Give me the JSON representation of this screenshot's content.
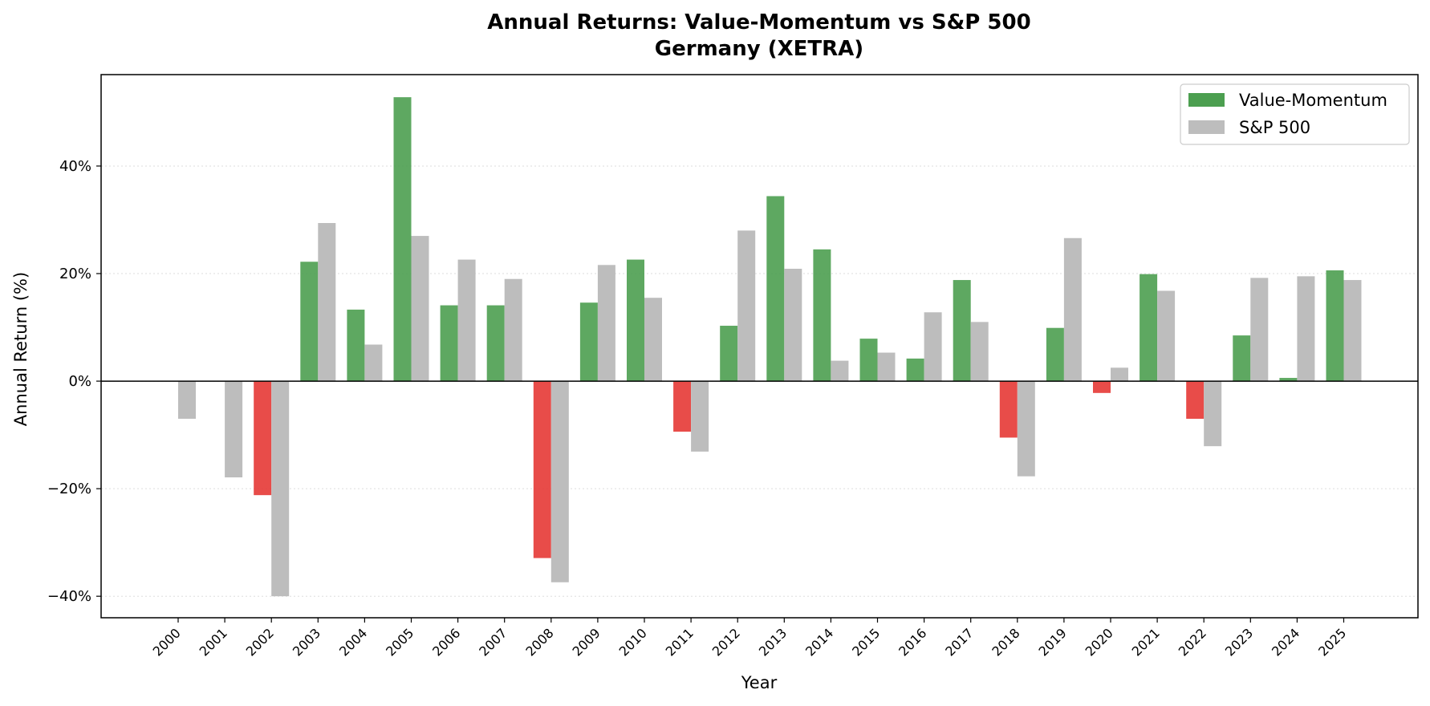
{
  "chart_data": {
    "type": "bar",
    "title": "Annual Returns: Value-Momentum vs S&P 500",
    "subtitle": "Germany (XETRA)",
    "xlabel": "Year",
    "ylabel": "Annual Return (%)",
    "ylim": [
      -44,
      57
    ],
    "yticks": [
      -40,
      -20,
      0,
      20,
      40
    ],
    "ytick_labels": [
      "−40%",
      "−20%",
      "0%",
      "20%",
      "40%"
    ],
    "grid": "horizontal dotted",
    "legend_position": "top-right",
    "categories": [
      "2000",
      "2001",
      "2002",
      "2003",
      "2004",
      "2005",
      "2006",
      "2007",
      "2008",
      "2009",
      "2010",
      "2011",
      "2012",
      "2013",
      "2014",
      "2015",
      "2016",
      "2017",
      "2018",
      "2019",
      "2020",
      "2021",
      "2022",
      "2023",
      "2024",
      "2025"
    ],
    "series": [
      {
        "name": "Value-Momentum",
        "color_positive": "#4c9f50",
        "color_negative": "#e53935",
        "values": [
          null,
          null,
          -21.2,
          22.2,
          13.3,
          52.8,
          14.1,
          14.1,
          -32.9,
          14.6,
          22.6,
          -9.4,
          10.3,
          34.4,
          24.5,
          7.9,
          4.2,
          18.8,
          -10.5,
          9.9,
          -2.2,
          19.9,
          -7.0,
          8.5,
          0.6,
          20.6
        ]
      },
      {
        "name": "S&P 500",
        "color": "#bdbdbd",
        "values": [
          -7.0,
          -17.9,
          -40.0,
          29.4,
          6.8,
          27.0,
          22.6,
          19.0,
          -37.4,
          21.6,
          15.5,
          -13.1,
          28.0,
          20.9,
          3.8,
          5.3,
          12.8,
          11.0,
          -17.7,
          26.6,
          2.5,
          16.8,
          -12.1,
          19.2,
          19.5,
          18.8
        ]
      }
    ]
  }
}
